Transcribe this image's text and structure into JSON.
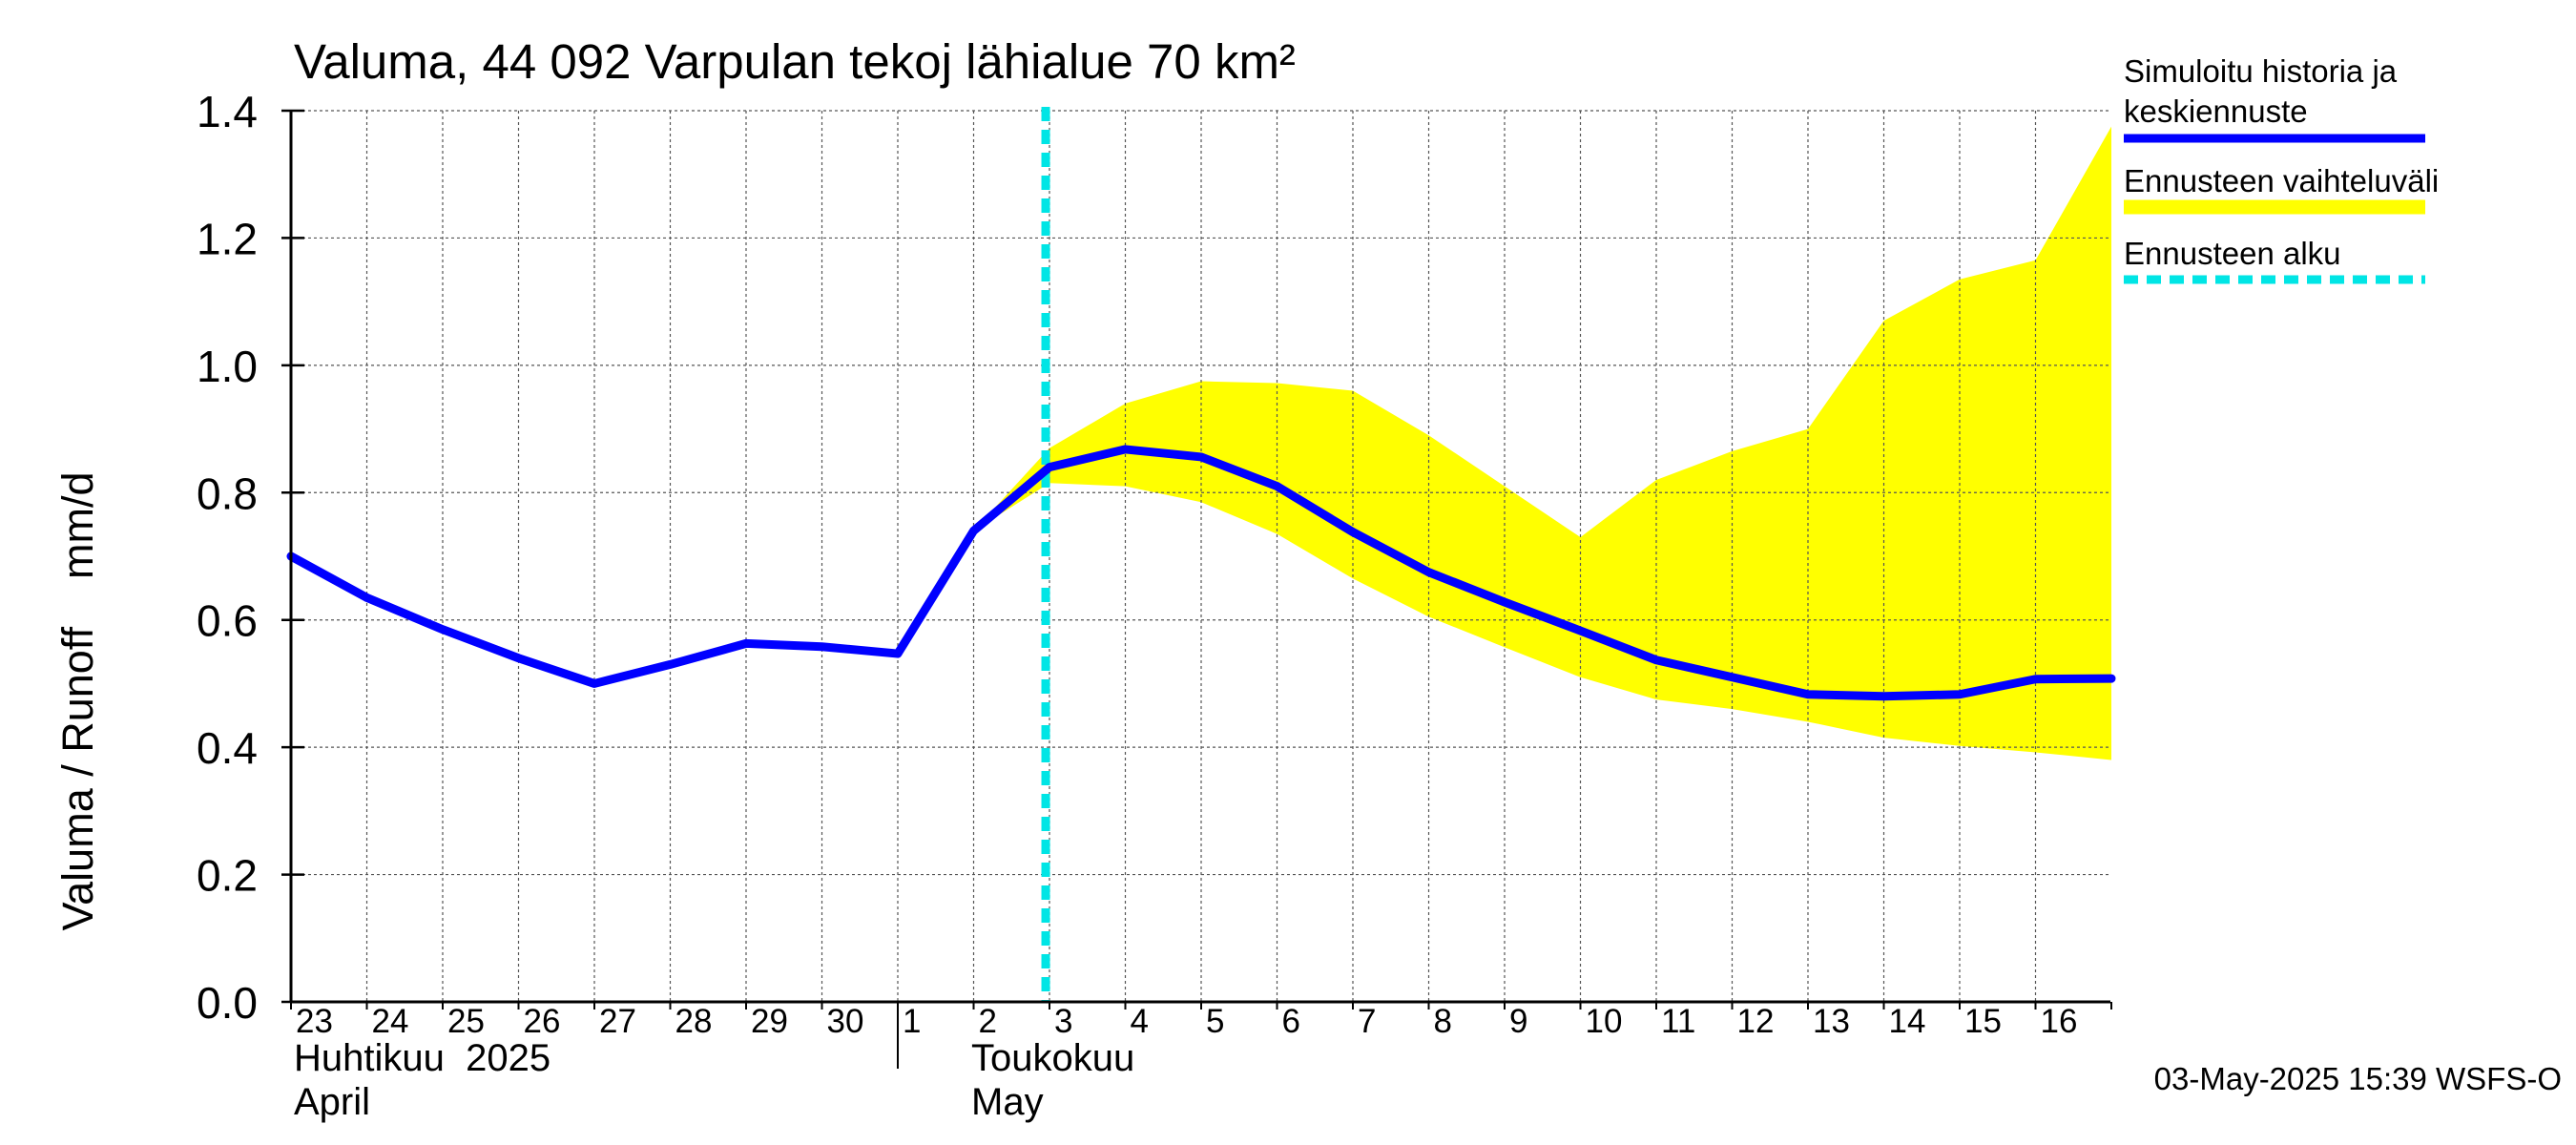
{
  "chart_data": {
    "type": "line",
    "title": "Valuma, 44 092 Varpulan tekoj lähialue 70 km²",
    "ylabel": "Valuma / Runoff    mm/d",
    "ylim": [
      0,
      1.4
    ],
    "yticks": [
      "0.0",
      "0.2",
      "0.4",
      "0.6",
      "0.8",
      "1.0",
      "1.2",
      "1.4"
    ],
    "x_tick_labels": [
      "23",
      "24",
      "25",
      "26",
      "27",
      "28",
      "29",
      "30",
      "1",
      "2",
      "3",
      "4",
      "5",
      "6",
      "7",
      "8",
      "9",
      "10",
      "11",
      "12",
      "13",
      "14",
      "15",
      "16"
    ],
    "month_labels": [
      {
        "line1": "Huhtikuu  2025",
        "line2": "April"
      },
      {
        "line1": "Toukokuu",
        "line2": "May"
      }
    ],
    "x_dates": [
      "2025-04-23",
      "2025-04-24",
      "2025-04-25",
      "2025-04-26",
      "2025-04-27",
      "2025-04-28",
      "2025-04-29",
      "2025-04-30",
      "2025-05-01",
      "2025-05-02",
      "2025-05-03",
      "2025-05-04",
      "2025-05-05",
      "2025-05-06",
      "2025-05-07",
      "2025-05-08",
      "2025-05-09",
      "2025-05-10",
      "2025-05-11",
      "2025-05-12",
      "2025-05-13",
      "2025-05-14",
      "2025-05-15",
      "2025-05-16",
      "2025-05-17"
    ],
    "series": [
      {
        "name": "Simuloitu historia ja keskiennuste",
        "color": "#0000ff",
        "values": [
          0.7,
          0.635,
          0.585,
          0.54,
          0.5,
          0.53,
          0.563,
          0.558,
          0.547,
          0.74,
          0.84,
          0.868,
          0.856,
          0.81,
          0.738,
          0.675,
          0.628,
          0.583,
          0.537,
          0.51,
          0.483,
          0.48,
          0.483,
          0.507,
          0.508
        ]
      },
      {
        "name": "Ennusteen vaihteluväli",
        "color": "#ffff00",
        "band_start_index": 9,
        "upper": [
          0.74,
          0.87,
          0.94,
          0.975,
          0.972,
          0.96,
          0.89,
          0.81,
          0.73,
          0.82,
          0.865,
          0.9,
          1.07,
          1.135,
          1.165,
          1.375
        ],
        "lower": [
          0.74,
          0.815,
          0.81,
          0.785,
          0.735,
          0.665,
          0.605,
          0.557,
          0.51,
          0.475,
          0.46,
          0.44,
          0.415,
          0.402,
          0.392,
          0.38
        ]
      }
    ],
    "forecast_start": {
      "name": "Ennusteen alku",
      "color": "#00e5e5",
      "date": "2025-05-03"
    },
    "legend_position": "right",
    "grid": true
  },
  "footer": {
    "timestamp": "03-May-2025 15:39 WSFS-O"
  }
}
